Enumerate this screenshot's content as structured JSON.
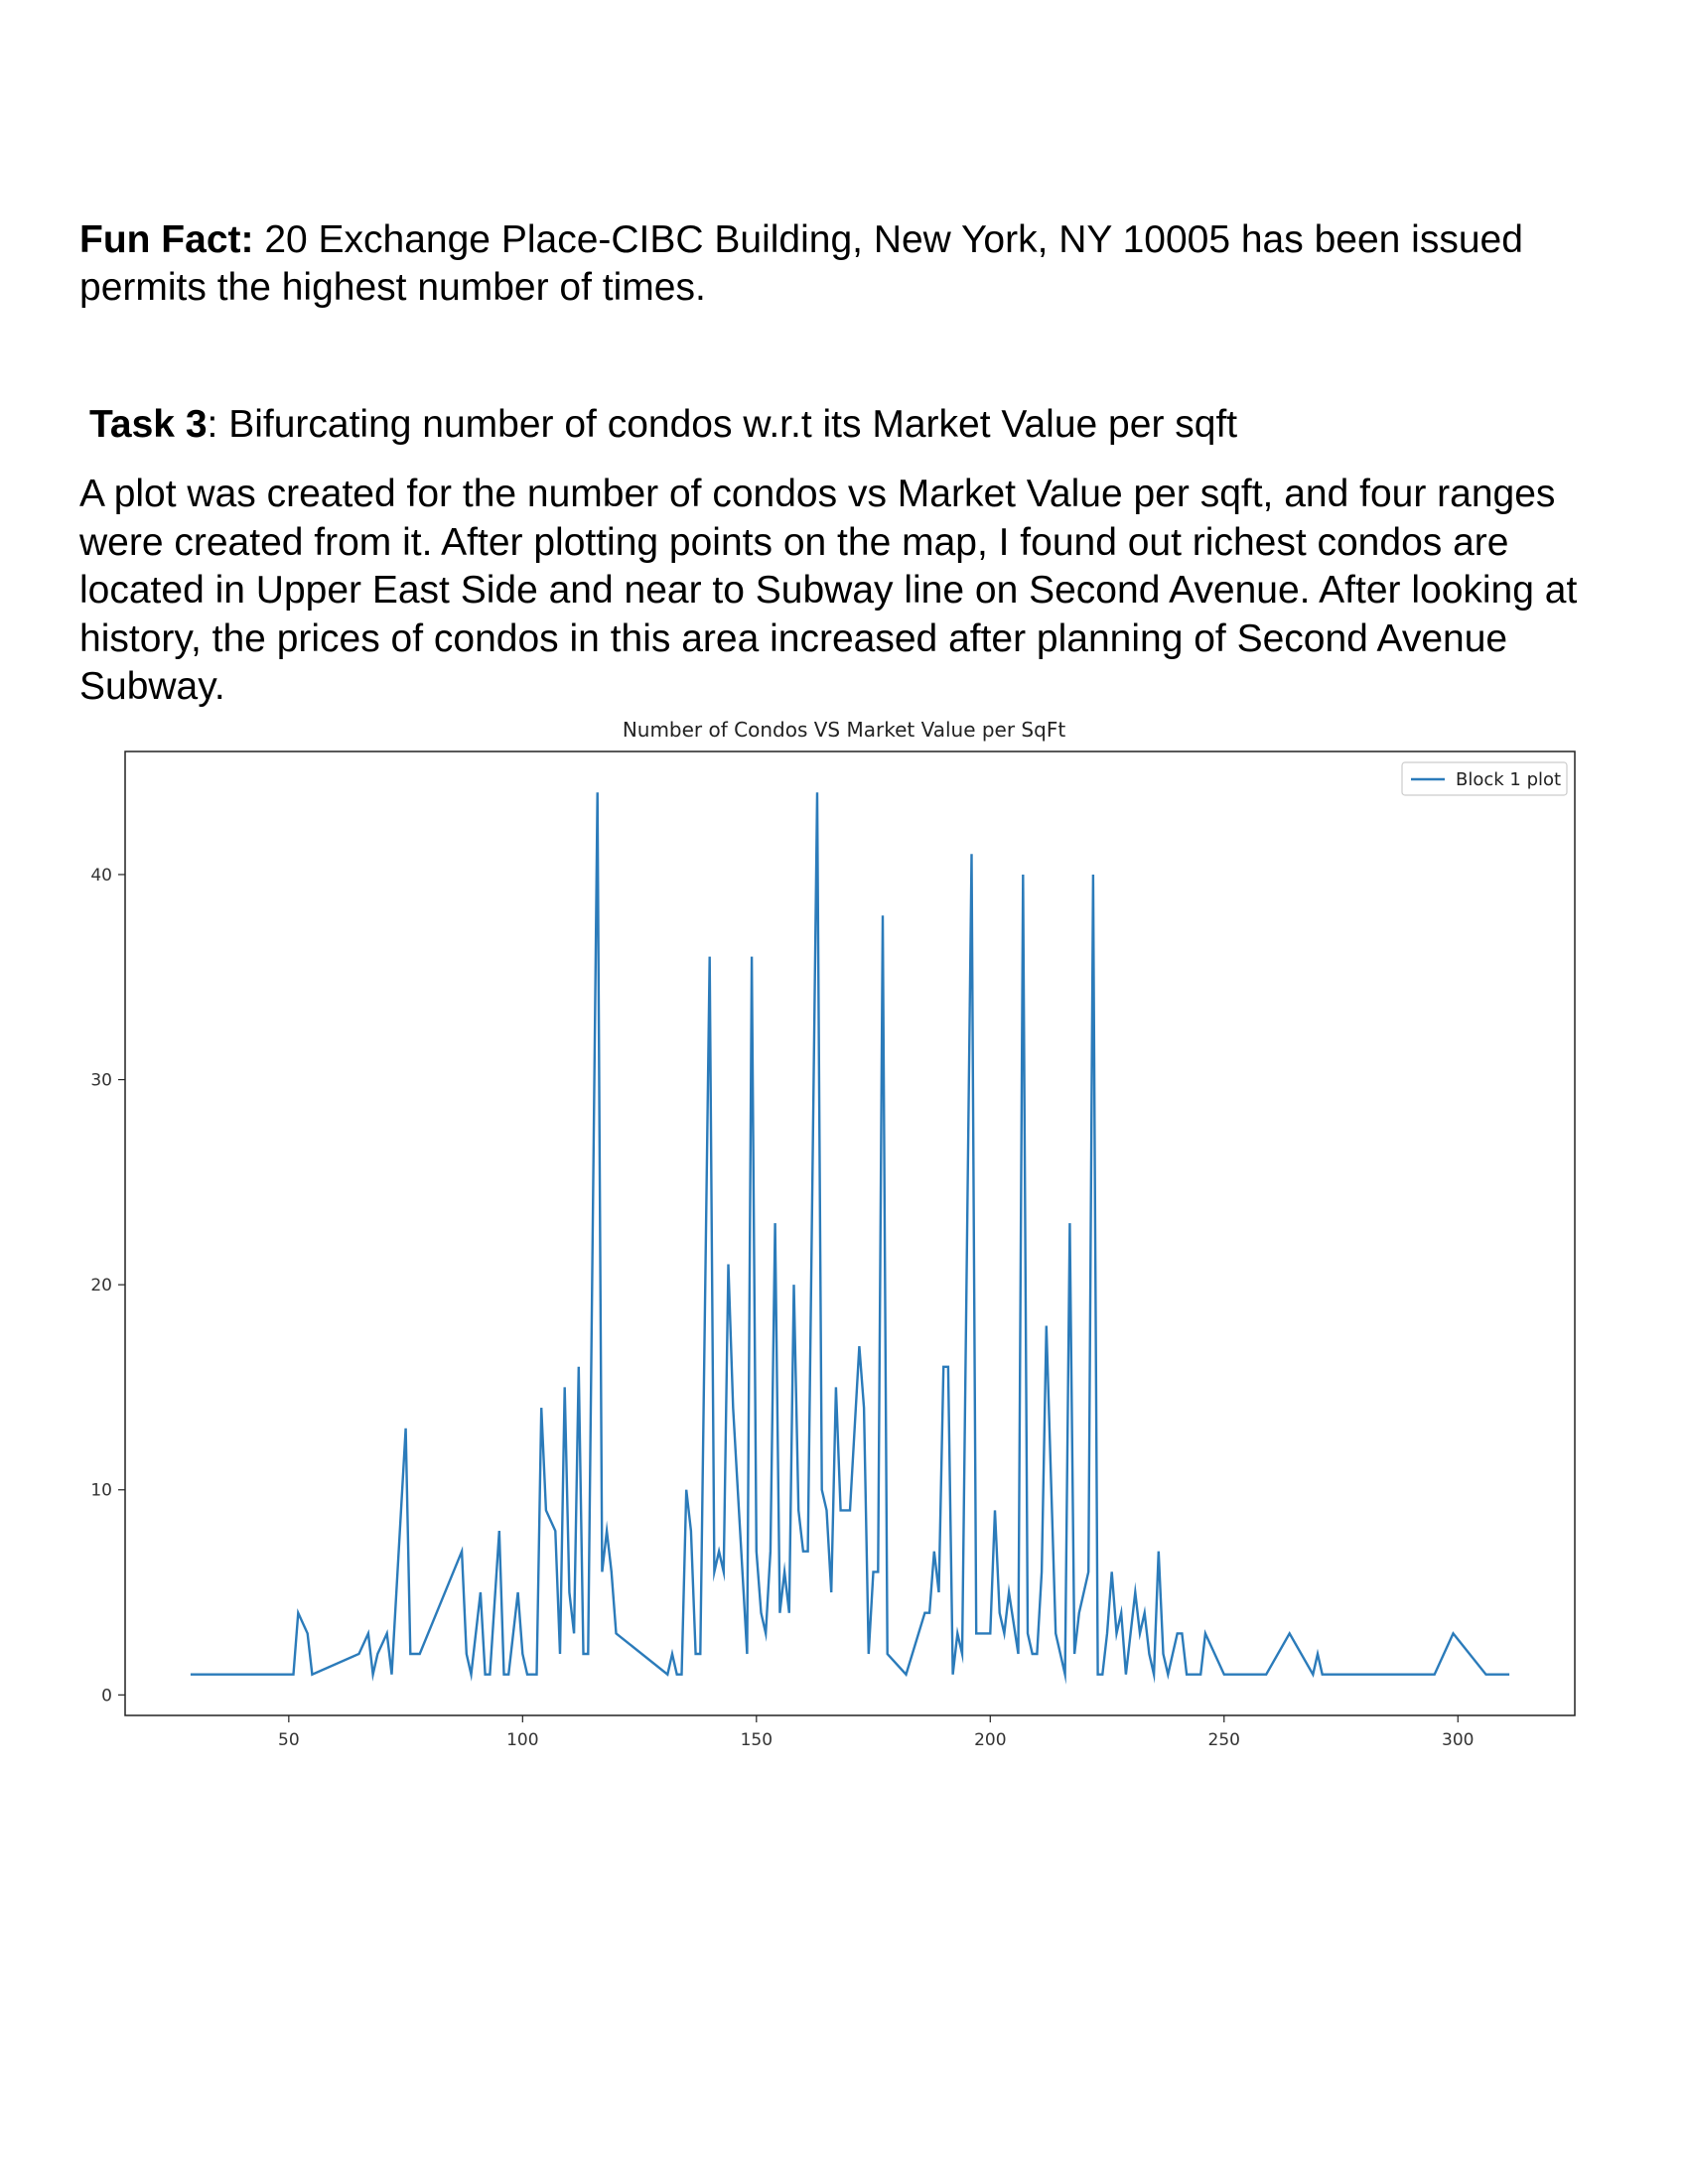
{
  "fun_fact": {
    "label": "Fun Fact:",
    "text": " 20 Exchange Place-CIBC Building, New York, NY 10005 has been issued permits the highest number of times."
  },
  "task": {
    "label": "Task 3",
    "text": ": Bifurcating number of condos w.r.t its Market Value per sqft"
  },
  "description": "A plot was created for the number of condos vs Market Value per sqft, and four ranges were created from it. After plotting points on the map, I found out richest condos are located in Upper East Side and near to Subway line on Second Avenue. After looking at history, the prices of condos in this area increased after planning of Second Avenue Subway.",
  "chart_data": {
    "type": "line",
    "title": "Number of Condos VS Market Value per SqFt",
    "xlabel": "",
    "ylabel": "",
    "xlim": [
      15,
      325
    ],
    "ylim": [
      -1,
      46
    ],
    "xticks": [
      50,
      100,
      150,
      200,
      250,
      300
    ],
    "yticks": [
      0,
      10,
      20,
      30,
      40
    ],
    "grid": false,
    "legend": "top-right",
    "color": "#2b7bba",
    "series": [
      {
        "name": "Block 1 plot",
        "x": [
          29,
          51,
          52,
          54,
          55,
          65,
          67,
          68,
          69,
          71,
          72,
          75,
          76,
          78,
          87,
          88,
          89,
          91,
          92,
          93,
          95,
          96,
          97,
          99,
          100,
          101,
          103,
          104,
          105,
          107,
          108,
          109,
          110,
          111,
          112,
          113,
          114,
          116,
          117,
          118,
          119,
          120,
          131,
          132,
          133,
          134,
          135,
          136,
          137,
          138,
          140,
          141,
          142,
          143,
          144,
          145,
          148,
          149,
          150,
          151,
          152,
          153,
          154,
          155,
          156,
          157,
          158,
          159,
          160,
          161,
          163,
          164,
          165,
          166,
          167,
          168,
          169,
          170,
          172,
          173,
          174,
          175,
          176,
          177,
          178,
          182,
          186,
          187,
          188,
          189,
          190,
          191,
          192,
          193,
          194,
          196,
          197,
          199,
          200,
          201,
          202,
          203,
          204,
          206,
          207,
          208,
          209,
          210,
          211,
          212,
          214,
          215,
          216,
          217,
          218,
          219,
          221,
          222,
          223,
          224,
          225,
          226,
          227,
          228,
          229,
          230,
          231,
          232,
          233,
          234,
          235,
          236,
          237,
          238,
          239,
          240,
          241,
          242,
          243,
          245,
          246,
          250,
          259,
          264,
          269,
          270,
          271,
          273,
          281,
          289,
          295,
          299,
          306,
          311
        ],
        "values": [
          1,
          1,
          4,
          3,
          1,
          2,
          3,
          1,
          2,
          3,
          1,
          13,
          2,
          2,
          7,
          2,
          1,
          5,
          1,
          1,
          8,
          1,
          1,
          5,
          2,
          1,
          1,
          14,
          9,
          8,
          2,
          15,
          5,
          3,
          16,
          2,
          2,
          44,
          6,
          8,
          6,
          3,
          1,
          2,
          1,
          1,
          10,
          8,
          2,
          2,
          36,
          6,
          7,
          6,
          21,
          14,
          2,
          36,
          7,
          4,
          3,
          7,
          23,
          4,
          6,
          4,
          20,
          9,
          7,
          7,
          44,
          10,
          9,
          5,
          15,
          9,
          9,
          9,
          17,
          14,
          2,
          6,
          6,
          38,
          2,
          1,
          4,
          4,
          7,
          5,
          16,
          16,
          1,
          3,
          2,
          41,
          3,
          3,
          3,
          9,
          4,
          3,
          5,
          2,
          40,
          3,
          2,
          2,
          6,
          18,
          3,
          2,
          1,
          23,
          2,
          4,
          6,
          40,
          1,
          1,
          3,
          6,
          3,
          4,
          1,
          3,
          5,
          3,
          4,
          2,
          1,
          7,
          2,
          1,
          2,
          3,
          3,
          1,
          1,
          1,
          3,
          1,
          1,
          3,
          1,
          2,
          1,
          1,
          1,
          1,
          1,
          3,
          1,
          1
        ]
      }
    ]
  }
}
